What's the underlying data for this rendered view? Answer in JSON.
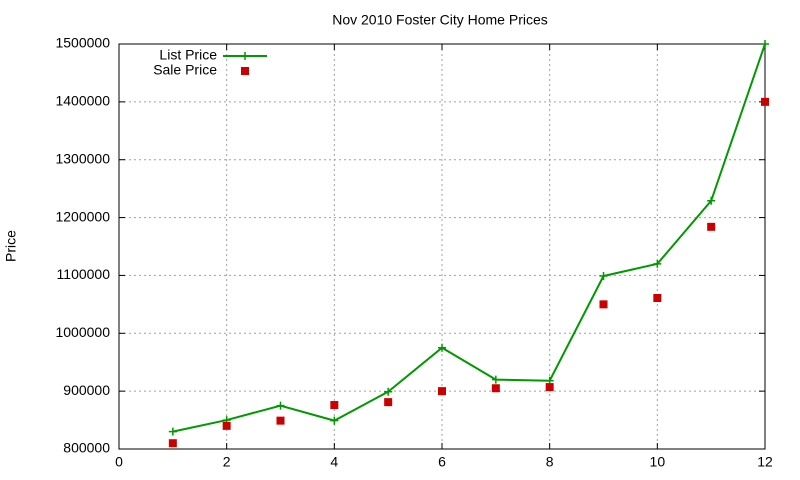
{
  "chart_data": {
    "type": "line",
    "title": "Nov 2010 Foster City Home Prices",
    "y_label": "Price",
    "x": [
      1,
      2,
      3,
      4,
      5,
      6,
      7,
      8,
      9,
      10,
      11,
      12
    ],
    "series": [
      {
        "name": "List Price",
        "color": "#009900",
        "style": "linespoints",
        "values": [
          830000,
          850000,
          875000,
          849000,
          899000,
          975000,
          920000,
          918000,
          1099000,
          1120000,
          1229000,
          1500000
        ]
      },
      {
        "name": "Sale Price",
        "color": "#cc0000",
        "style": "points",
        "values": [
          810000,
          840000,
          849000,
          876000,
          881000,
          900000,
          905000,
          907000,
          1050000,
          1061000,
          1184000,
          1400000
        ]
      }
    ],
    "xlim": [
      0,
      12
    ],
    "xticks": [
      0,
      2,
      4,
      6,
      8,
      10,
      12
    ],
    "ylim": [
      800000,
      1500000
    ],
    "yticks": [
      800000,
      900000,
      1000000,
      1100000,
      1200000,
      1300000,
      1400000,
      1500000
    ],
    "grid": true,
    "legend": "top-left"
  }
}
